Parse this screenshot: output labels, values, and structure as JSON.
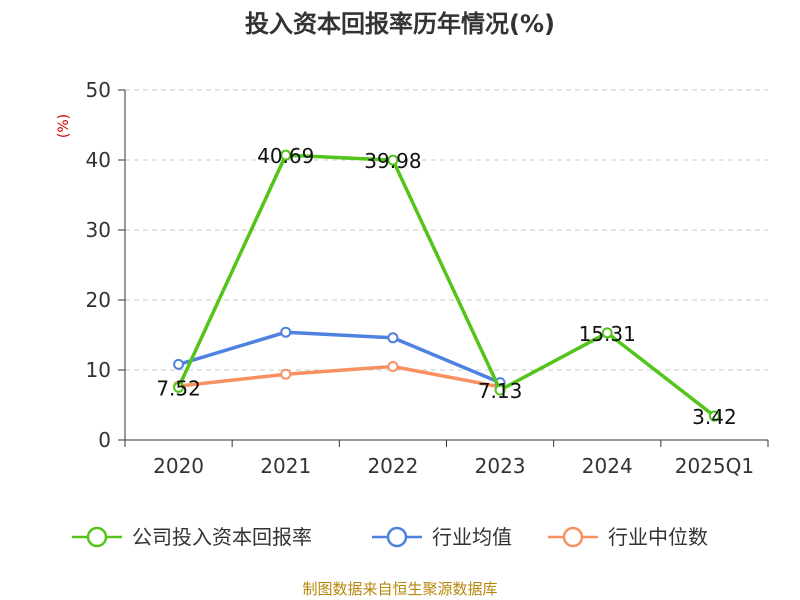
{
  "chart_data": {
    "type": "line",
    "title": "投入资本回报率历年情况(%)",
    "y_unit": "(%)",
    "categories": [
      "2020",
      "2021",
      "2022",
      "2023",
      "2024",
      "2025Q1"
    ],
    "ylim": [
      0,
      50
    ],
    "yticks": [
      0,
      10,
      20,
      30,
      40,
      50
    ],
    "grid": true,
    "legend_position": "bottom",
    "series": [
      {
        "name": "公司投入资本回报率",
        "color": "#52c41a",
        "values": [
          7.52,
          40.69,
          39.98,
          7.13,
          15.31,
          3.42
        ],
        "labels": [
          "7.52",
          "40.69",
          "39.98",
          "7.13",
          "15.31",
          "3.42"
        ]
      },
      {
        "name": "行业均值",
        "color": "#4f81e0",
        "values": [
          10.8,
          15.4,
          14.6,
          8.2,
          null,
          null
        ]
      },
      {
        "name": "行业中位数",
        "color": "#f89061",
        "values": [
          7.7,
          9.4,
          10.5,
          7.6,
          null,
          null
        ]
      }
    ]
  },
  "source": "制图数据来自恒生聚源数据库"
}
